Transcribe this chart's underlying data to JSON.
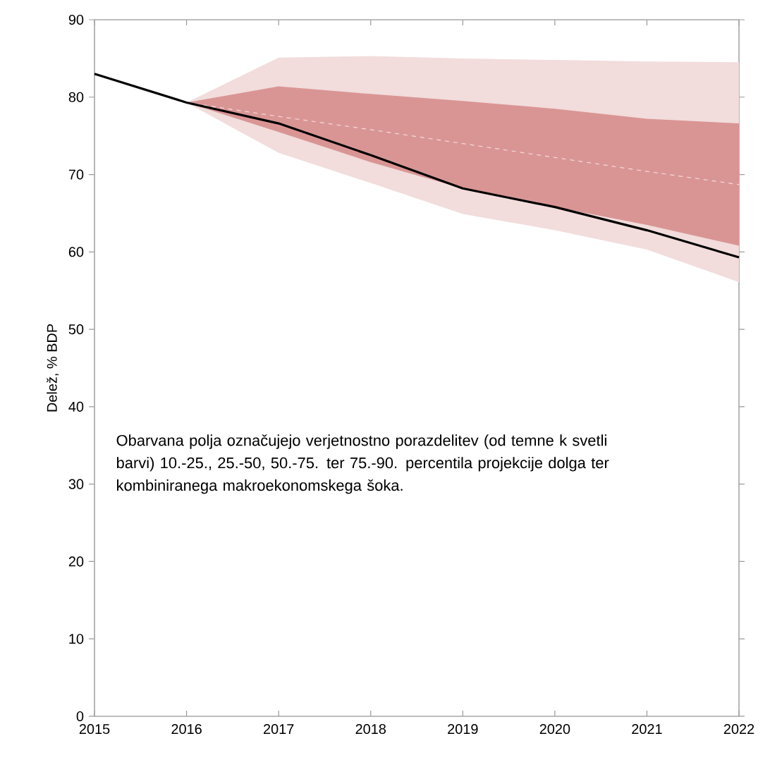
{
  "chart_data": {
    "type": "line",
    "ylabel": "Delež, % BDP",
    "xlim": [
      2015,
      2022
    ],
    "xticks": [
      2015,
      2016,
      2017,
      2018,
      2019,
      2020,
      2021,
      2022
    ],
    "ylim": [
      0,
      90
    ],
    "yticks": [
      0,
      10,
      20,
      30,
      40,
      50,
      60,
      70,
      80,
      90
    ],
    "annotations": [
      "Obarvana polja označujejo verjetnostno porazdelitev (od temne k svetli barvi) 10.-25., 25.-50, 50.-75. ter 75.-90. percentila projekcije dolga ter kombiniranega makroekonomskega šoka."
    ],
    "series": [
      {
        "color": "#f2dcdc",
        "line_style": "dashed",
        "x": [
          2016,
          2017,
          2018,
          2019,
          2020,
          2021,
          2022
        ],
        "values": [
          79.3,
          77.5,
          75.8,
          74.0,
          72.2,
          70.4,
          68.7
        ],
        "lower": [
          79.3,
          72.8,
          68.9,
          64.9,
          62.8,
          60.3,
          56.1
        ],
        "upper": [
          79.3,
          85.1,
          85.3,
          85.0,
          84.8,
          84.6,
          84.5
        ]
      },
      {
        "color": "#d99594",
        "x": [
          2016,
          2017,
          2018,
          2019,
          2020,
          2021,
          2022
        ],
        "values": [
          null,
          null,
          null,
          null,
          null,
          null,
          null
        ],
        "lower": [
          79.3,
          75.5,
          71.6,
          68.2,
          65.8,
          63.5,
          60.8
        ],
        "upper": [
          79.3,
          81.4,
          80.4,
          79.5,
          78.5,
          77.2,
          76.6
        ]
      },
      {
        "color": "#000000",
        "line_style": "solid",
        "x": [
          2015,
          2016,
          2017,
          2018,
          2019,
          2020,
          2021,
          2022
        ],
        "values": [
          83.0,
          79.3,
          76.6,
          72.5,
          68.2,
          65.8,
          62.8,
          59.3
        ]
      }
    ]
  }
}
